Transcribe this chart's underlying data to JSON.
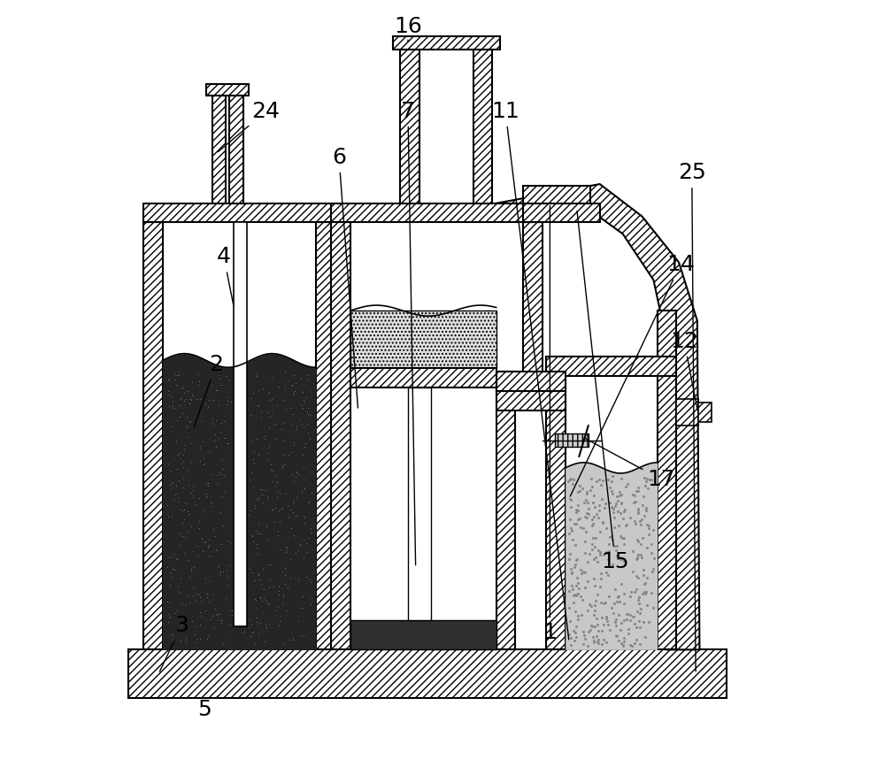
{
  "background_color": "#ffffff",
  "lw": 1.5,
  "wt": 0.025,
  "figsize": [
    10.0,
    8.67
  ],
  "dpi": 100,
  "label_fontsize": 18
}
